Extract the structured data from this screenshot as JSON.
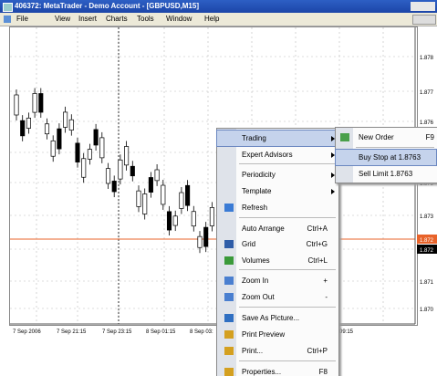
{
  "window": {
    "title": "406372: MetaTrader - Demo Account - [GBPUSD,M15]"
  },
  "menu_bar": [
    "File",
    "View",
    "Insert",
    "Charts",
    "Tools",
    "Window",
    "Help"
  ],
  "price_axis": [
    "1.878",
    "1.877",
    "1.876",
    "1.875",
    "1.873",
    "1.872",
    "1.872",
    "1.871",
    "1.870"
  ],
  "time_axis": [
    "7 Sep 2006",
    "7 Sep 21:15",
    "7 Sep 23:15",
    "8 Sep 01:15",
    "8 Sep 03:",
    "09:15"
  ],
  "context_menu": {
    "items": [
      {
        "label": "Trading",
        "submenu": true
      },
      {
        "label": "Expert Advisors",
        "submenu": true
      },
      {
        "label": "Periodicity",
        "submenu": true
      },
      {
        "label": "Template",
        "submenu": true
      },
      {
        "label": "Refresh"
      },
      {
        "label": "Auto Arrange",
        "shortcut": "Ctrl+A"
      },
      {
        "label": "Grid",
        "shortcut": "Ctrl+G"
      },
      {
        "label": "Volumes",
        "shortcut": "Ctrl+L"
      },
      {
        "label": "Zoom In",
        "shortcut": "+"
      },
      {
        "label": "Zoom Out",
        "shortcut": "-"
      },
      {
        "label": "Save As Picture..."
      },
      {
        "label": "Print Preview"
      },
      {
        "label": "Print...",
        "shortcut": "Ctrl+P"
      },
      {
        "label": "Properties...",
        "shortcut": "F8"
      }
    ]
  },
  "submenu": {
    "items": [
      {
        "label": "New Order",
        "shortcut": "F9"
      },
      {
        "label": "Buy Stop at 1.8763"
      },
      {
        "label": "Sell Limit 1.8763"
      }
    ]
  }
}
